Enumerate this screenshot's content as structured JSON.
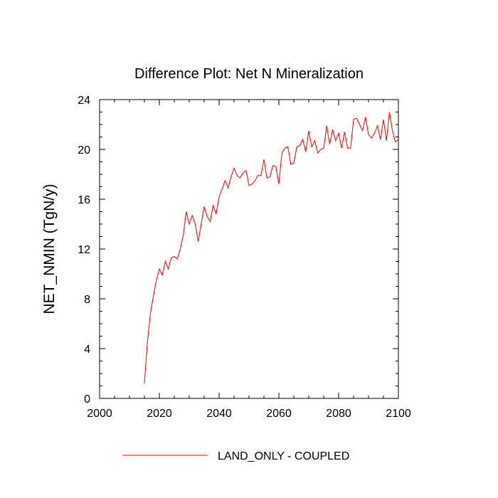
{
  "chart_data": {
    "type": "line",
    "title": "Difference Plot: Net N Mineralization",
    "xlabel": "",
    "ylabel": "NET_NMIN  (TgN/y)",
    "xlim": [
      2000,
      2100
    ],
    "ylim": [
      0,
      24
    ],
    "x_major_ticks": [
      2000,
      2020,
      2040,
      2060,
      2080,
      2100
    ],
    "y_major_ticks": [
      0,
      4,
      8,
      12,
      16,
      20,
      24
    ],
    "x_tick_labels": [
      "2000",
      "2020",
      "2040",
      "2060",
      "2080",
      "2100"
    ],
    "y_tick_labels": [
      "0",
      "4",
      "8",
      "12",
      "16",
      "20",
      "24"
    ],
    "grid": false,
    "legend_position": "bottom-center",
    "series": [
      {
        "name": "LAND_ONLY - COUPLED",
        "color": "#ff0000",
        "x": [
          2015,
          2016,
          2017,
          2018,
          2019,
          2020,
          2021,
          2022,
          2023,
          2024,
          2025,
          2026,
          2027,
          2028,
          2029,
          2030,
          2031,
          2032,
          2033,
          2034,
          2035,
          2036,
          2037,
          2038,
          2039,
          2040,
          2041,
          2042,
          2043,
          2044,
          2045,
          2046,
          2047,
          2048,
          2049,
          2050,
          2051,
          2052,
          2053,
          2054,
          2055,
          2056,
          2057,
          2058,
          2059,
          2060,
          2061,
          2062,
          2063,
          2064,
          2065,
          2066,
          2067,
          2068,
          2069,
          2070,
          2071,
          2072,
          2073,
          2074,
          2075,
          2076,
          2077,
          2078,
          2079,
          2080,
          2081,
          2082,
          2083,
          2084,
          2085,
          2086,
          2087,
          2088,
          2089,
          2090,
          2091,
          2092,
          2093,
          2094,
          2095,
          2096,
          2097,
          2098,
          2099,
          2100
        ],
        "values": [
          1.2,
          4.5,
          6.8,
          8.2,
          9.5,
          10.4,
          9.9,
          11.0,
          10.4,
          11.3,
          11.4,
          11.2,
          12.0,
          13.1,
          15.0,
          14.0,
          14.7,
          14.0,
          12.6,
          14.0,
          15.4,
          14.6,
          14.2,
          15.5,
          14.8,
          16.2,
          16.8,
          17.5,
          16.9,
          17.8,
          18.5,
          17.9,
          17.7,
          18.1,
          18.3,
          17.1,
          17.2,
          17.5,
          17.9,
          17.9,
          19.2,
          17.7,
          17.8,
          18.7,
          18.6,
          17.2,
          19.7,
          20.1,
          20.2,
          18.8,
          18.9,
          20.2,
          20.3,
          20.8,
          19.8,
          21.5,
          20.2,
          20.7,
          19.7,
          20.0,
          20.1,
          21.9,
          20.4,
          21.6,
          20.7,
          21.3,
          20.1,
          21.4,
          20.1,
          20.1,
          22.4,
          22.5,
          22.0,
          21.5,
          22.6,
          21.2,
          20.9,
          21.3,
          21.9,
          20.8,
          22.4,
          20.7,
          23.0,
          21.5,
          20.6,
          20.8
        ]
      }
    ]
  }
}
